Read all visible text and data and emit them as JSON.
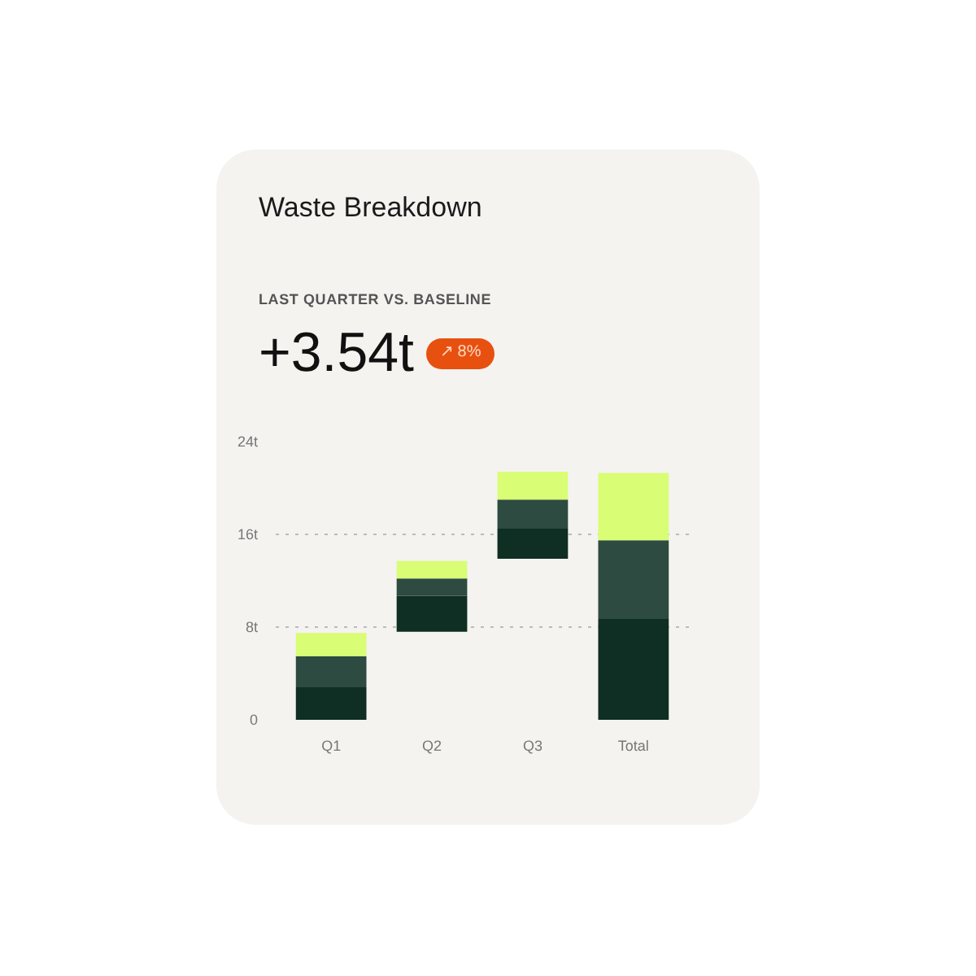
{
  "chart_data": {
    "type": "bar",
    "title": "Waste Breakdown",
    "subtitle": "LAST QUARTER VS. BASELINE",
    "annotations": [
      "+3.54t",
      "↗ 8%"
    ],
    "categories": [
      "Q1",
      "Q2",
      "Q3",
      "Total"
    ],
    "stacked": true,
    "series": [
      {
        "color": "#0f2e24",
        "base": [
          0,
          7.6,
          13.9,
          0
        ],
        "values": [
          2.8,
          3.1,
          2.6,
          8.7
        ]
      },
      {
        "color": "#2d4b40",
        "values": [
          2.7,
          1.5,
          2.5,
          6.8
        ]
      },
      {
        "color": "#d9fd74",
        "values": [
          2.0,
          1.5,
          2.4,
          5.8
        ]
      }
    ],
    "ylim": [
      0,
      24
    ],
    "yticks": [
      0,
      {
        "value": 8,
        "label": "8t"
      },
      {
        "value": 16,
        "label": "16t"
      },
      {
        "value": 24,
        "label": "24t"
      }
    ],
    "grid": "y"
  }
}
